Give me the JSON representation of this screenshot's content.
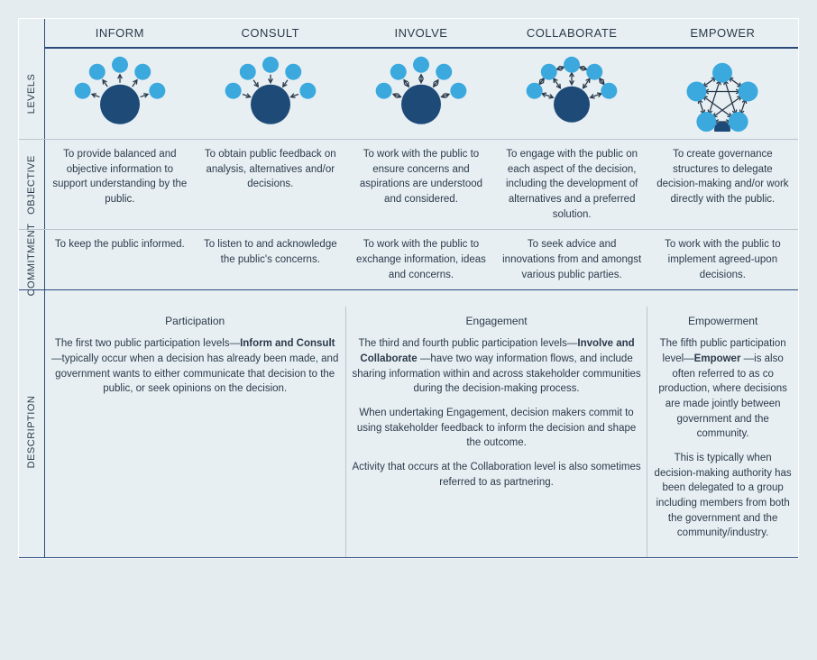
{
  "colors": {
    "background": "#e5ecf0",
    "frame_bg": "#e8eff3",
    "header_line": "#2a4a7a",
    "cell_line": "#b8c6d0",
    "text": "#2a3a4a",
    "node_big": "#1e4a78",
    "node_small": "#3ba9dd",
    "arrow": "#2a3a4a"
  },
  "typography": {
    "base_fontsize": 12,
    "cell_fontsize": 11.5,
    "header_fontsize": 13,
    "rowlabel_fontsize": 11
  },
  "columns": [
    {
      "key": "inform",
      "label": "INFORM",
      "icon_type": "hub_out"
    },
    {
      "key": "consult",
      "label": "CONSULT",
      "icon_type": "hub_in"
    },
    {
      "key": "involve",
      "label": "INVOLVE",
      "icon_type": "hub_both"
    },
    {
      "key": "collaborate",
      "label": "COLLABORATE",
      "icon_type": "mesh_hub"
    },
    {
      "key": "empower",
      "label": "EMPOWER",
      "icon_type": "mesh_full"
    }
  ],
  "rows": {
    "levels": {
      "label": "LEVELS"
    },
    "objective": {
      "label": "OBJECTIVE"
    },
    "commitment": {
      "label": "COMMITMENT"
    },
    "description": {
      "label": "DESCRIPTION"
    }
  },
  "objective": {
    "inform": "To provide balanced and objective information to support understanding by the public.",
    "consult": "To obtain public feedback on analysis, alternatives and/or decisions.",
    "involve": "To work with the public to ensure concerns and aspirations are understood and considered.",
    "collaborate": "To engage with the public on each aspect of the decision, including the development of alternatives and a preferred solution.",
    "empower": "To create governance structures to delegate decision-making and/or work directly with the public."
  },
  "commitment": {
    "inform": "To keep the public informed.",
    "consult": "To listen to and acknowledge the public's concerns.",
    "involve": "To work with the public to exchange information, ideas and concerns.",
    "collaborate": "To seek advice and innovations from and amongst various public parties.",
    "empower": "To work with the public to implement agreed-upon decisions."
  },
  "description": [
    {
      "title": "Participation",
      "span_cols": 2,
      "body_html": "The first two public participation levels—<b>Inform and Consult</b> —typically occur when a decision has already been made, and government wants to either communicate that decision to the public, or seek opinions on the decision."
    },
    {
      "title": "Engagement",
      "span_cols": 2,
      "body_html": "The third and fourth public participation levels—<b>Involve and Collaborate</b> —have two way information flows, and include sharing information within and across stakeholder communities during the decision-making process.|When undertaking Engagement, decision makers commit to using stakeholder feedback to inform the decision and shape the outcome.|Activity that occurs at the Collaboration level is also sometimes referred to as partnering."
    },
    {
      "title": "Empowerment",
      "span_cols": 1,
      "body_html": "The fifth public participation level—<b>Empower</b> —is also often referred to as co production, where decisions are made jointly between government and the community.|This is typically when decision-making authority has been delegated to a group including members from both the government and the community/industry."
    }
  ],
  "icons": {
    "hub_radius": 22,
    "sat_radius": 9,
    "sat_count": 5,
    "canvas": 120
  }
}
